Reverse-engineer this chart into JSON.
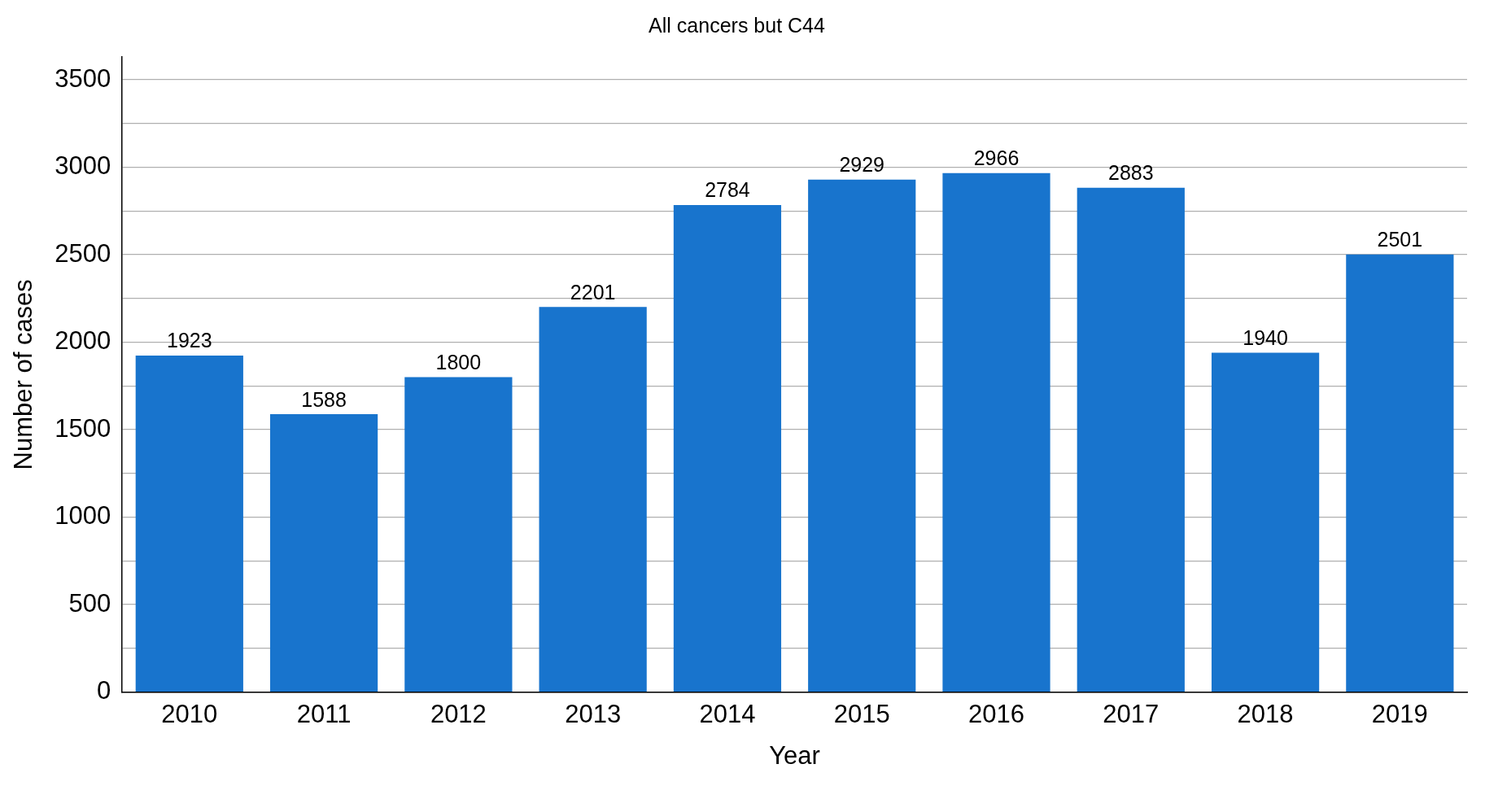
{
  "chart_data": {
    "type": "bar",
    "title": "All cancers but C44",
    "xlabel": "Year",
    "ylabel": "Number of cases",
    "categories": [
      "2010",
      "2011",
      "2012",
      "2013",
      "2014",
      "2015",
      "2016",
      "2017",
      "2018",
      "2019"
    ],
    "values": [
      1923,
      1588,
      1800,
      2201,
      2784,
      2929,
      2966,
      2883,
      1940,
      2501
    ],
    "color": "#1874cd",
    "data_labels": true,
    "grid": "y",
    "legend": false,
    "ylim": [
      0,
      3630
    ],
    "yticks": [
      0,
      {
        "value": 250,
        "label": null
      },
      500,
      {
        "value": 750,
        "label": null
      },
      1000,
      {
        "value": 1250,
        "label": null
      },
      1500,
      {
        "value": 1750,
        "label": null
      },
      2000,
      {
        "value": 2250,
        "label": null
      },
      2500,
      {
        "value": 2750,
        "label": null
      },
      3000,
      {
        "value": 3250,
        "label": null
      },
      3500
    ]
  }
}
